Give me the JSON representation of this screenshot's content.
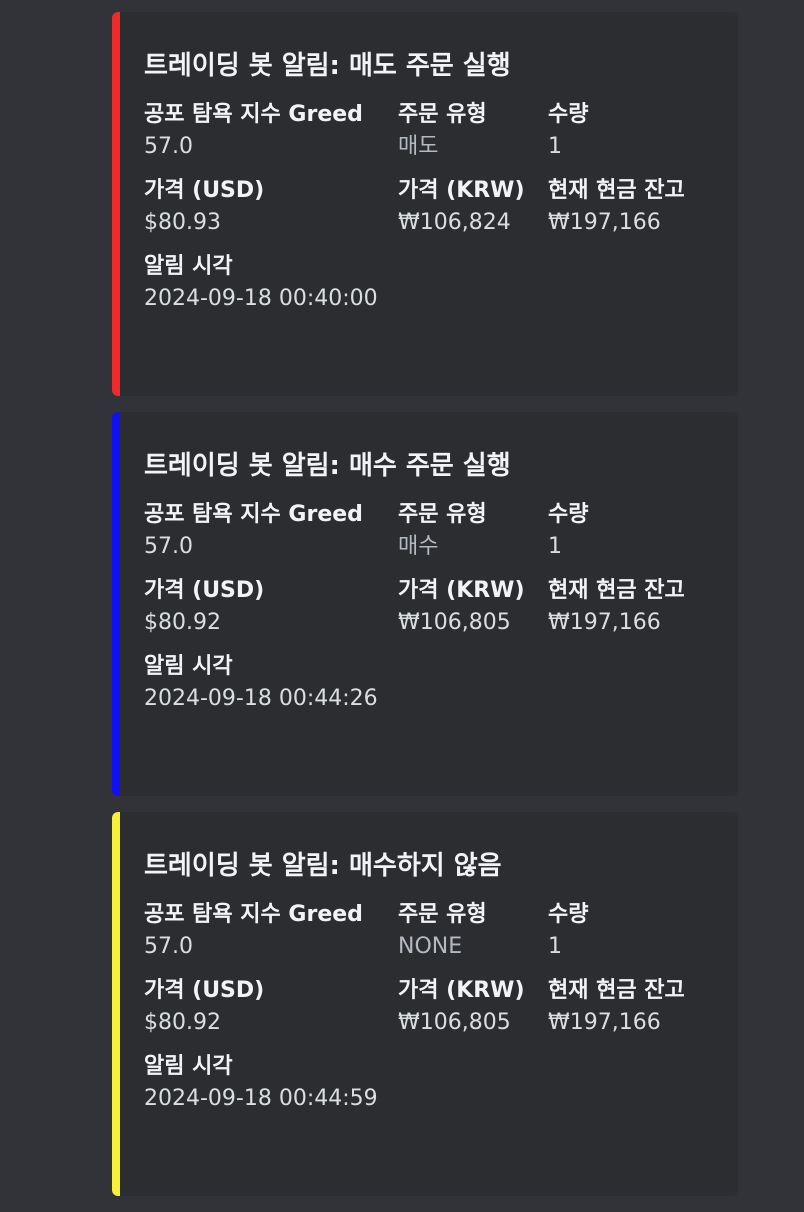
{
  "embeds": [
    {
      "color": "#ed2b2b",
      "title": "트레이딩 봇 알림: 매도 주문 실행",
      "greed_label": "공포 탐욕 지수 Greed",
      "greed_value": "57.0",
      "order_type_label": "주문 유형",
      "order_type_value": "매도",
      "qty_label": "수량",
      "qty_value": "1",
      "usd_label": "가격 (USD)",
      "usd_value": "$80.93",
      "krw_label": "가격 (KRW)",
      "krw_value": "₩106,824",
      "cash_label": "현재 현금 잔고",
      "cash_value": "₩197,166",
      "time_label": "알림 시각",
      "time_value": "2024-09-18 00:40:00"
    },
    {
      "color": "#1010f5",
      "title": "트레이딩 봇 알림: 매수 주문 실행",
      "greed_label": "공포 탐욕 지수 Greed",
      "greed_value": "57.0",
      "order_type_label": "주문 유형",
      "order_type_value": "매수",
      "qty_label": "수량",
      "qty_value": "1",
      "usd_label": "가격 (USD)",
      "usd_value": "$80.92",
      "krw_label": "가격 (KRW)",
      "krw_value": "₩106,805",
      "cash_label": "현재 현금 잔고",
      "cash_value": "₩197,166",
      "time_label": "알림 시각",
      "time_value": "2024-09-18 00:44:26"
    },
    {
      "color": "#f7f038",
      "title": "트레이딩 봇 알림: 매수하지 않음",
      "greed_label": "공포 탐욕 지수 Greed",
      "greed_value": "57.0",
      "order_type_label": "주문 유형",
      "order_type_value": "NONE",
      "qty_label": "수량",
      "qty_value": "1",
      "usd_label": "가격 (USD)",
      "usd_value": "$80.92",
      "krw_label": "가격 (KRW)",
      "krw_value": "₩106,805",
      "cash_label": "현재 현금 잔고",
      "cash_value": "₩197,166",
      "time_label": "알림 시각",
      "time_value": "2024-09-18 00:44:59"
    }
  ]
}
